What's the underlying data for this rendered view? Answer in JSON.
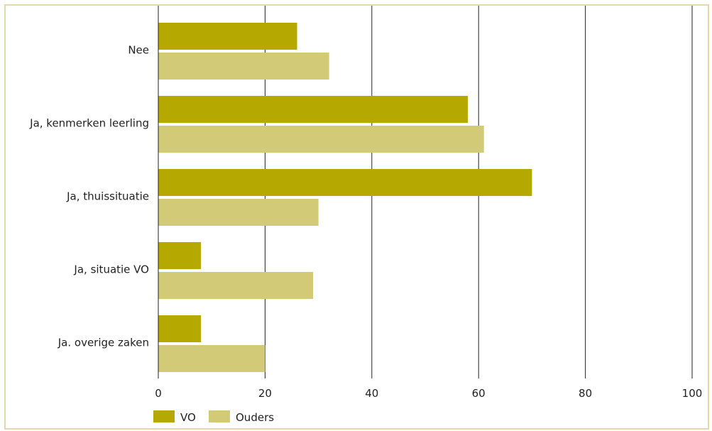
{
  "chart_data": {
    "type": "bar",
    "orientation": "horizontal",
    "categories": [
      "Nee",
      "Ja, kenmerken leerling",
      "Ja, thuissituatie",
      "Ja, situatie VO",
      "Ja. overige zaken"
    ],
    "series": [
      {
        "name": "VO",
        "color": "#b5a800",
        "values": [
          26,
          58,
          70,
          8,
          8
        ]
      },
      {
        "name": "Ouders",
        "color": "#d3ca77",
        "values": [
          32,
          61,
          30,
          29,
          20
        ]
      }
    ],
    "xlim": [
      0,
      100
    ],
    "xticks": [
      0,
      20,
      40,
      60,
      80,
      100
    ],
    "tick_labels": [
      "0",
      "20",
      "40",
      "60",
      "80",
      "100"
    ],
    "grid": "vertical",
    "legend_position": "bottom-left",
    "gridline_color": "#222222"
  }
}
